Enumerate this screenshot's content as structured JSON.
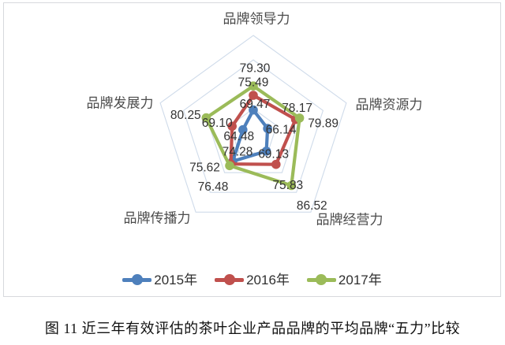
{
  "figure": {
    "caption": "图 11  近三年有效评估的茶叶企业产品品牌的平均品牌“五力”比较"
  },
  "chart_data": {
    "type": "radar",
    "axes": [
      "品牌领导力",
      "品牌资源力",
      "品牌经营力",
      "品牌传播力",
      "品牌发展力"
    ],
    "series": [
      {
        "name": "2015年",
        "color": "#4E80BC",
        "values": [
          69.47,
          66.14,
          69.13,
          74.28,
          64.48
        ]
      },
      {
        "name": "2016年",
        "color": "#C0504D",
        "values": [
          75.49,
          78.17,
          75.83,
          75.62,
          69.1
        ]
      },
      {
        "name": "2017年",
        "color": "#9BBB59",
        "values": [
          79.3,
          79.89,
          86.52,
          76.48,
          80.25
        ]
      }
    ],
    "scale": {
      "min": 60,
      "max": 100,
      "step": 10
    },
    "value_label_decimals": 2,
    "grid": true,
    "grid_color": "#CFDBEA",
    "legend_position": "bottom",
    "value_labels_shown": true
  }
}
